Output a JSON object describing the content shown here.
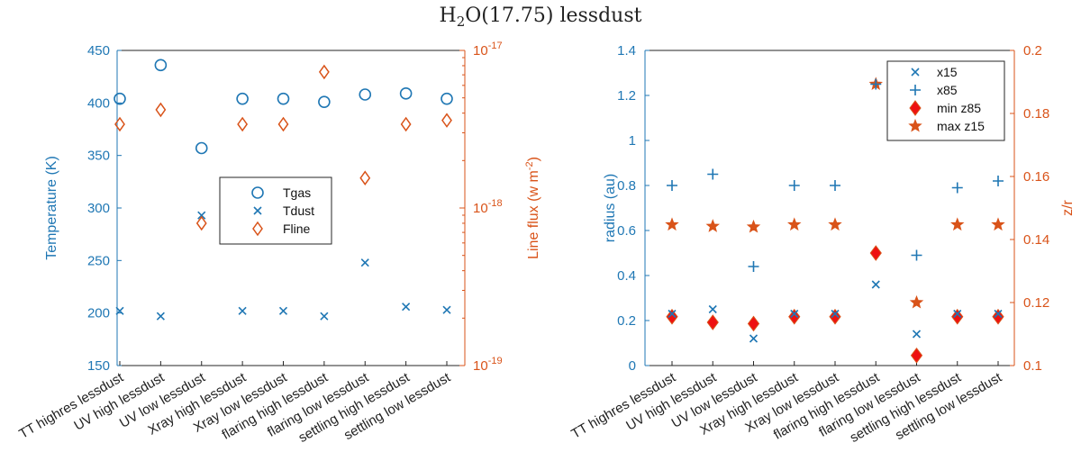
{
  "title": {
    "prefix": "H",
    "sub": "2",
    "rest": "O(17.75) lessdust"
  },
  "colors": {
    "blue": "#1f77b4",
    "orange": "#d95319",
    "red": "#ee1111",
    "axis_dark": "#262626"
  },
  "chart_data": [
    {
      "type": "scatter",
      "categories": [
        "TT highres lessdust",
        "UV high lessdust",
        "UV low lessdust",
        "Xray high lessdust",
        "Xray low lessdust",
        "flaring high lessdust",
        "flaring low lessdust",
        "settling high lessdust",
        "settling low lessdust"
      ],
      "left_axis": {
        "label": "Temperature (K)",
        "ylim": [
          150,
          450
        ],
        "ticks": [
          "150",
          "200",
          "250",
          "300",
          "350",
          "400",
          "450"
        ]
      },
      "right_axis": {
        "label": "Line flux (w m",
        "label_sup": "-2",
        "label_end": ")",
        "scale": "log",
        "ylim_exp": [
          -19,
          -17
        ],
        "ticks": [
          {
            "base": "10",
            "exp": "-19",
            "value_exp": -19
          },
          {
            "base": "10",
            "exp": "-18",
            "value_exp": -18
          },
          {
            "base": "10",
            "exp": "-17",
            "value_exp": -17
          }
        ]
      },
      "series": [
        {
          "name": "Tgas",
          "axis": "left",
          "marker": "circle",
          "values": [
            404,
            436,
            357,
            404,
            404,
            401,
            408,
            409,
            404
          ]
        },
        {
          "name": "Tdust",
          "axis": "left",
          "marker": "x",
          "values": [
            202,
            197,
            293,
            202,
            202,
            197,
            248,
            206,
            203
          ]
        },
        {
          "name": "Fline",
          "axis": "right",
          "marker": "diamond",
          "values": [
            3.4e-18,
            4.2e-18,
            8e-19,
            3.4e-18,
            3.4e-18,
            7.3e-18,
            1.55e-18,
            3.4e-18,
            3.6e-18
          ]
        }
      ],
      "legend": {
        "position": "center-right"
      }
    },
    {
      "type": "scatter",
      "categories": [
        "TT highres lessdust",
        "UV high lessdust",
        "UV low lessdust",
        "Xray high lessdust",
        "Xray low lessdust",
        "flaring high lessdust",
        "flaring low lessdust",
        "settling high lessdust",
        "settling low lessdust"
      ],
      "left_axis": {
        "label": "radius (au)",
        "ylim": [
          0,
          1.4
        ],
        "ticks": [
          "0",
          "0.2",
          "0.4",
          "0.6",
          "0.8",
          "1",
          "1.2",
          "1.4"
        ]
      },
      "right_axis": {
        "label": "z/r",
        "ylim": [
          0.1,
          0.2
        ],
        "ticks": [
          "0.1",
          "0.12",
          "0.14",
          "0.16",
          "0.18",
          "0.2"
        ]
      },
      "series": [
        {
          "name": "x15",
          "axis": "left",
          "marker": "x",
          "values": [
            0.23,
            0.25,
            0.12,
            0.23,
            0.23,
            0.36,
            0.14,
            0.23,
            0.23
          ]
        },
        {
          "name": "x85",
          "axis": "left",
          "marker": "plus",
          "values": [
            0.8,
            0.85,
            0.44,
            0.8,
            0.8,
            1.25,
            0.49,
            0.79,
            0.82
          ]
        },
        {
          "name": "min z85",
          "axis": "right",
          "marker": "filled-diamond",
          "values": [
            0.1155,
            0.1137,
            0.1133,
            0.1155,
            0.1155,
            0.1357,
            0.1032,
            0.1155,
            0.1155
          ]
        },
        {
          "name": "max z15",
          "axis": "right",
          "marker": "star",
          "values": [
            0.1447,
            0.1442,
            0.144,
            0.1447,
            0.1447,
            0.1893,
            0.12,
            0.1447,
            0.1447
          ]
        }
      ],
      "legend": {
        "position": "top-right"
      }
    }
  ]
}
